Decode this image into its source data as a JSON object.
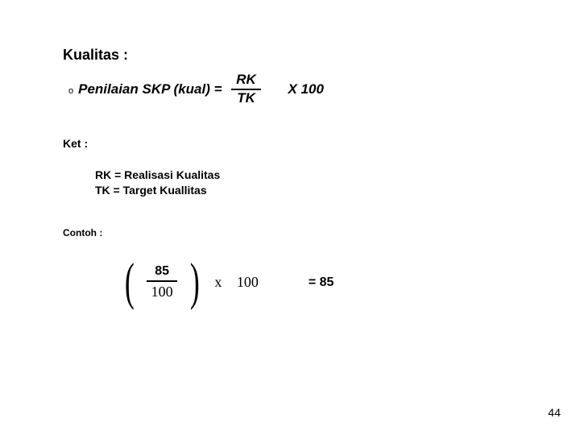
{
  "title": "Kualitas :",
  "formula": {
    "bullet": "o",
    "label": "Penilaian SKP (kual) =",
    "numerator": "RK",
    "denominator": "TK",
    "multiply": "X  100"
  },
  "keterangan_label": "Ket   :",
  "def_rk": "RK = Realisasi Kualitas",
  "def_tk": "TK = Target Kuallitas",
  "contoh_label": "Contoh :",
  "example": {
    "left_paren": "(",
    "numerator": "85",
    "denominator": "100",
    "right_paren": ")",
    "x": "x",
    "factor": "100",
    "result": "= 85"
  },
  "page_number": "44",
  "colors": {
    "text": "#000000",
    "background": "#ffffff"
  },
  "typography": {
    "title_fontsize_pt": 14,
    "body_fontsize_pt": 12,
    "small_fontsize_pt": 9,
    "bold_everywhere": true
  }
}
